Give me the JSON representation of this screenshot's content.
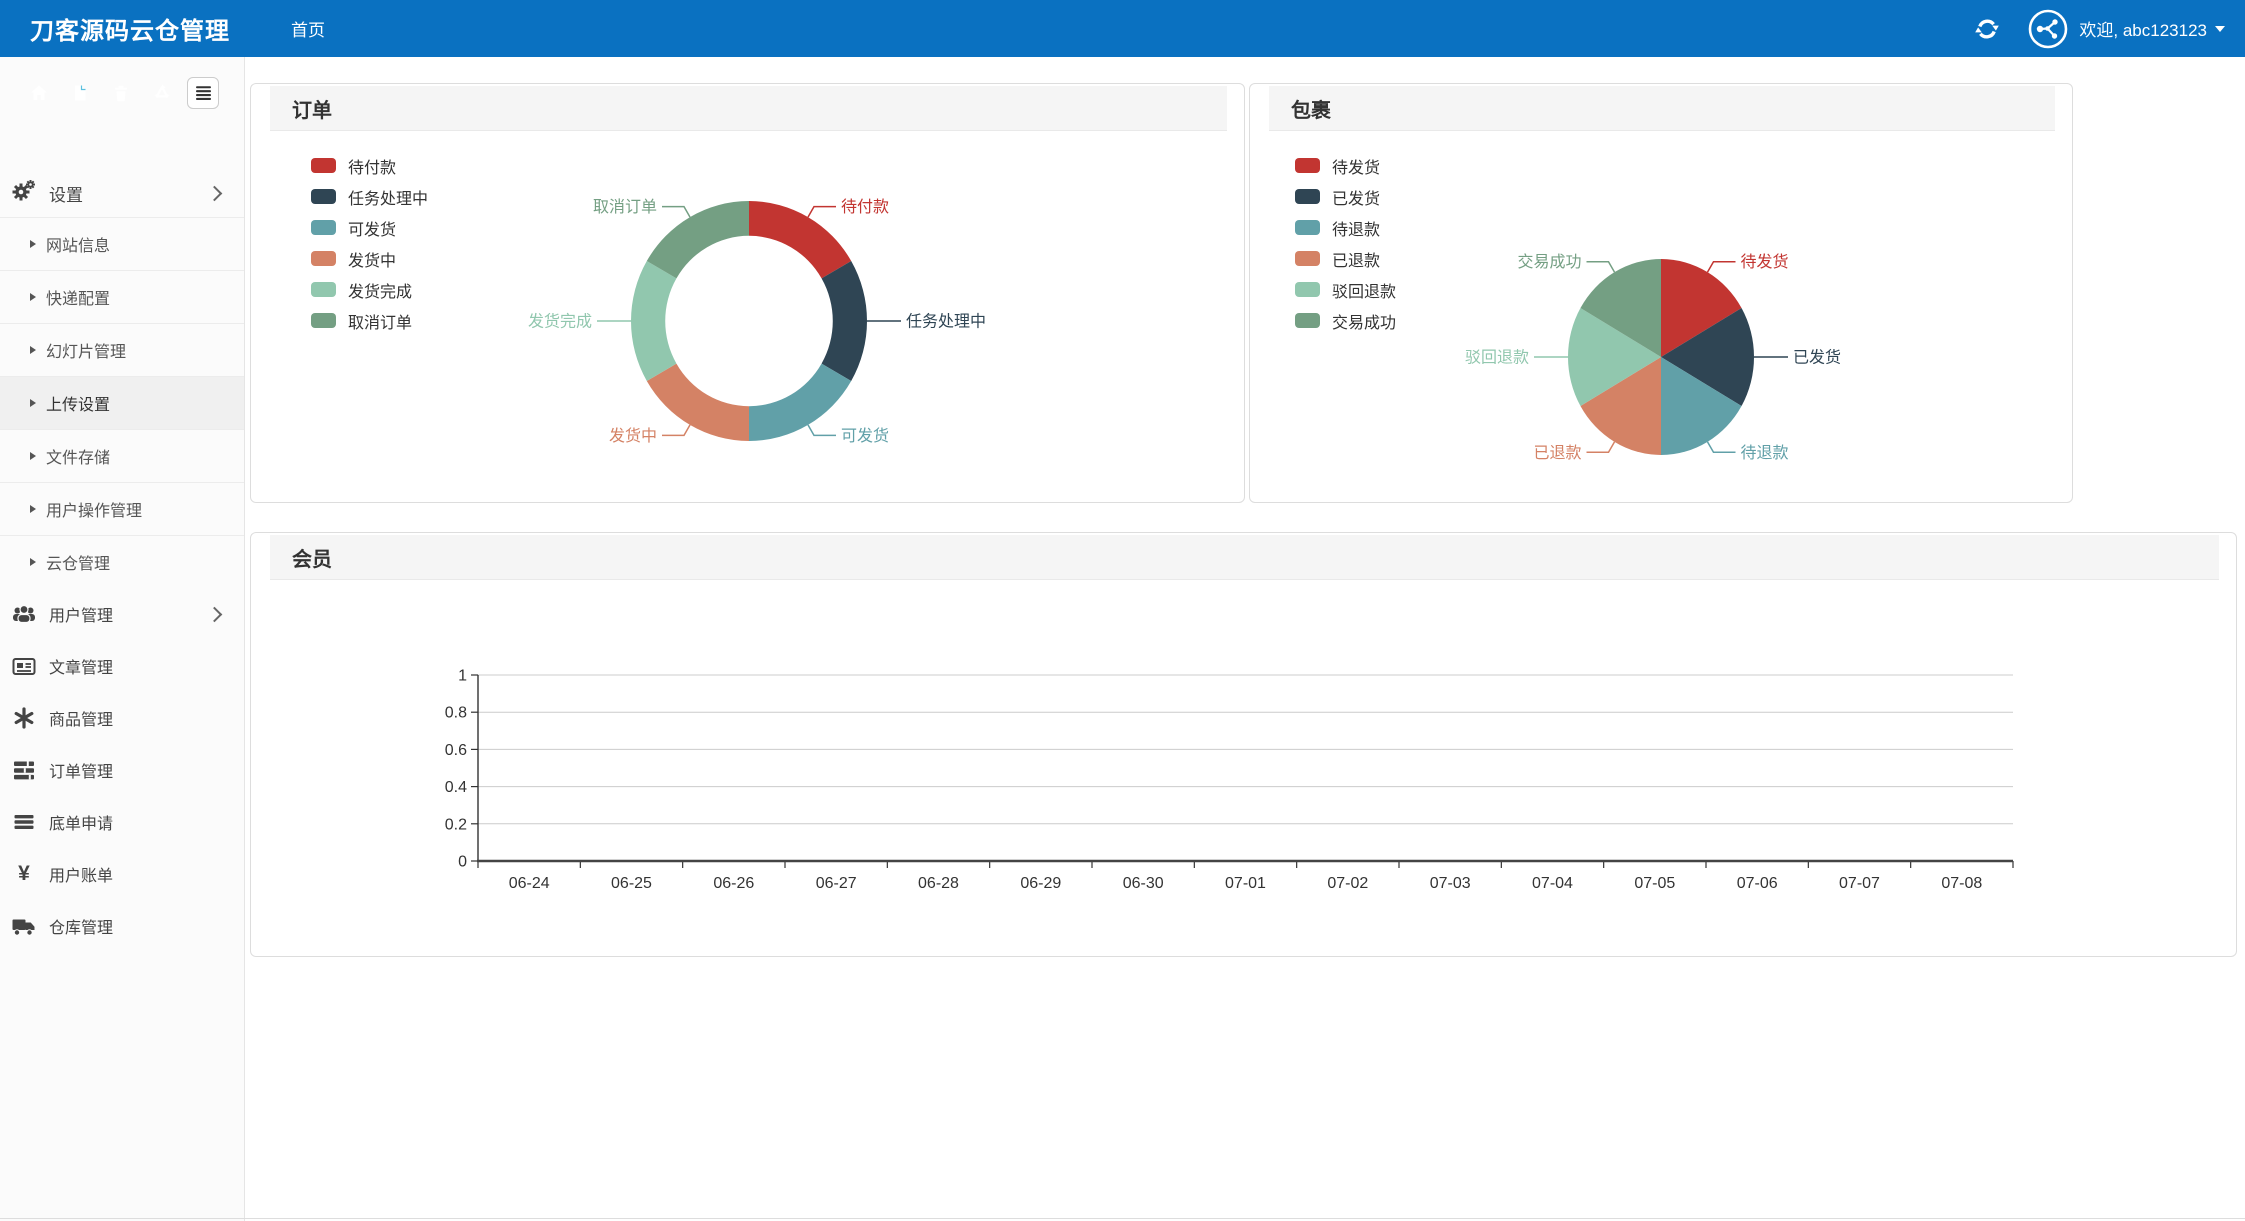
{
  "colors": {
    "navbar_bg": "#0a71c1",
    "palette": [
      "#c23531",
      "#2f4554",
      "#61a0a8",
      "#d48265",
      "#91c7ae",
      "#749f83"
    ],
    "toolbar_home": "#f0ad4e",
    "toolbar_file": "#5bc0de",
    "toolbar_trash": "#d9534f",
    "toolbar_recycle": "#d9534f",
    "toolbar_list_bg": "#ffffff",
    "sidebar_active_bg": "#f0f0f0",
    "panel_header_bg": "#f5f5f5"
  },
  "navbar": {
    "brand": "刀客源码云仓管理",
    "menu": [
      {
        "label": "首页"
      }
    ],
    "user": {
      "welcome": "欢迎, abc123123"
    }
  },
  "sidebar": {
    "toolbar_icons": [
      "home-icon",
      "file-icon",
      "trash-icon",
      "recycle-icon",
      "list-icon"
    ],
    "settings": {
      "label": "设置"
    },
    "sub_items": [
      "网站信息",
      "快递配置",
      "幻灯片管理",
      "上传设置",
      "文件存储",
      "用户操作管理",
      "云仓管理"
    ],
    "active_sub_item": "上传设置",
    "main_items": [
      "用户管理",
      "文章管理",
      "商品管理",
      "订单管理",
      "底单申请",
      "用户账单",
      "仓库管理"
    ]
  },
  "panels": {
    "orders": "订单",
    "packages": "包裹",
    "members": "会员"
  },
  "chart_data": [
    {
      "type": "pie",
      "variant": "donut",
      "title": "订单",
      "labels": [
        "待付款",
        "任务处理中",
        "可发货",
        "发货中",
        "发货完成",
        "取消订单"
      ],
      "values": [
        1,
        1,
        1,
        1,
        1,
        1
      ],
      "colors": [
        "#c23531",
        "#2f4554",
        "#61a0a8",
        "#d48265",
        "#91c7ae",
        "#749f83"
      ],
      "legend_position": "left",
      "label_lines": true
    },
    {
      "type": "pie",
      "variant": "pie",
      "title": "包裹",
      "labels": [
        "待发货",
        "已发货",
        "待退款",
        "已退款",
        "驳回退款",
        "交易成功"
      ],
      "values": [
        1,
        1,
        1,
        1,
        1,
        1
      ],
      "colors": [
        "#c23531",
        "#2f4554",
        "#61a0a8",
        "#d48265",
        "#91c7ae",
        "#749f83"
      ],
      "legend_position": "left",
      "label_lines": true
    },
    {
      "type": "line",
      "title": "会员",
      "categories": [
        "06-24",
        "06-25",
        "06-26",
        "06-27",
        "06-28",
        "06-29",
        "06-30",
        "07-01",
        "07-02",
        "07-03",
        "07-04",
        "07-05",
        "07-06",
        "07-07",
        "07-08"
      ],
      "series": [
        {
          "name": "会员",
          "values": [
            0,
            0,
            0,
            0,
            0,
            0,
            0,
            0,
            0,
            0,
            0,
            0,
            0,
            0,
            0
          ]
        }
      ],
      "ylim": [
        0,
        1
      ],
      "yticks": [
        0,
        0.2,
        0.4,
        0.6,
        0.8,
        1
      ],
      "ytick_labels": [
        "0",
        "0.2",
        "0.4",
        "0.6",
        "0.8",
        "1"
      ],
      "grid": true,
      "legend_position": "none"
    }
  ]
}
